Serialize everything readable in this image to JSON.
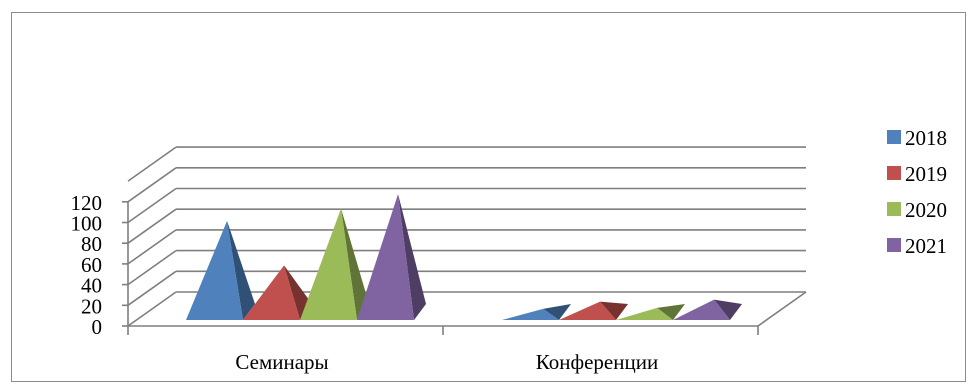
{
  "chart_data": {
    "type": "bar",
    "style": "3d-pyramid",
    "categories": [
      "Семинары",
      "Конференции"
    ],
    "series": [
      {
        "name": "2018",
        "values": [
          88,
          3
        ],
        "color": "#4f81bd"
      },
      {
        "name": "2019",
        "values": [
          45,
          10
        ],
        "color": "#c0504d"
      },
      {
        "name": "2020",
        "values": [
          100,
          4
        ],
        "color": "#9bbb59"
      },
      {
        "name": "2021",
        "values": [
          114,
          12
        ],
        "color": "#8064a2"
      }
    ],
    "y_ticks": [
      "0",
      "20",
      "40",
      "60",
      "80",
      "100",
      "120"
    ],
    "ylim": [
      0,
      140
    ],
    "grid": true,
    "legend_position": "right"
  }
}
